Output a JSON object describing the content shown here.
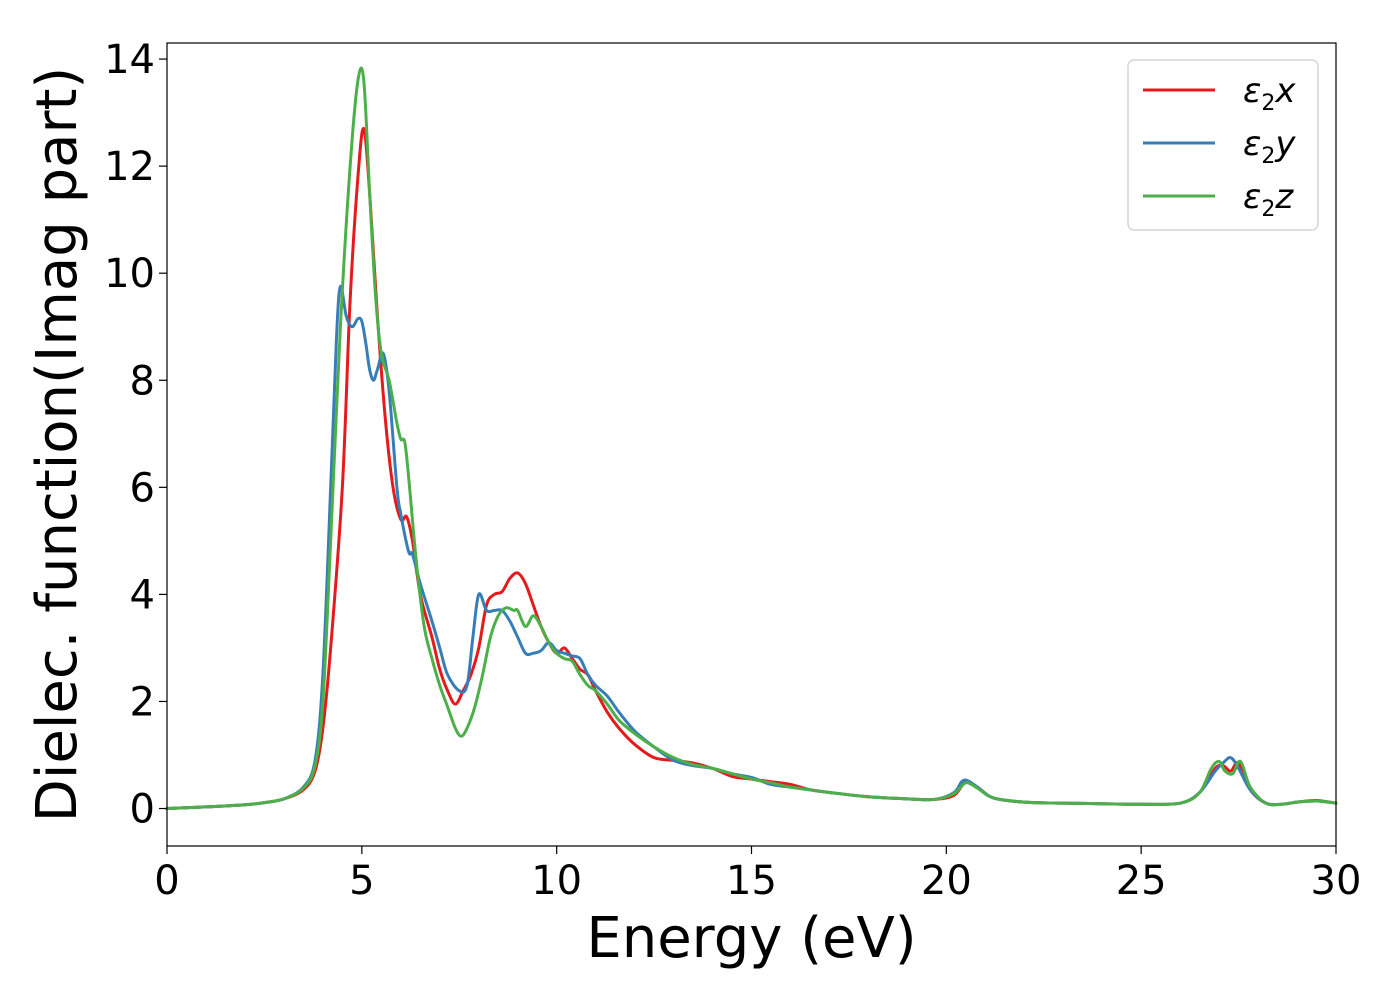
{
  "chart_data": {
    "type": "line",
    "xlabel": "Energy (eV)",
    "ylabel": "Dielec. function(Imag part)",
    "xlim": [
      0,
      30
    ],
    "ylim": [
      -0.7,
      14.3
    ],
    "xticks": [
      0,
      5,
      10,
      15,
      20,
      25,
      30
    ],
    "yticks": [
      0,
      2,
      4,
      6,
      8,
      10,
      12,
      14
    ],
    "grid": false,
    "legend_position": "top-right",
    "series": [
      {
        "name": "ε2x",
        "legend": {
          "base": "ε",
          "sub": "2",
          "suffix": "x"
        },
        "color": "#e41a1c",
        "x": [
          0,
          1,
          2,
          2.5,
          3,
          3.5,
          3.8,
          4.0,
          4.2,
          4.5,
          4.7,
          4.9,
          5.05,
          5.2,
          5.4,
          5.6,
          5.8,
          6.0,
          6.15,
          6.3,
          6.5,
          6.8,
          7.0,
          7.2,
          7.4,
          7.6,
          7.8,
          8.0,
          8.2,
          8.4,
          8.6,
          8.8,
          9.0,
          9.2,
          9.4,
          9.6,
          9.8,
          10.0,
          10.2,
          10.4,
          10.6,
          10.8,
          11.0,
          11.3,
          11.6,
          12.0,
          12.5,
          13.0,
          13.5,
          14.0,
          14.5,
          15.0,
          15.5,
          16.0,
          16.5,
          17.0,
          18.0,
          19.0,
          19.7,
          20.2,
          20.5,
          20.8,
          21.2,
          22.0,
          23.0,
          24.0,
          25.0,
          26.0,
          26.5,
          26.9,
          27.1,
          27.3,
          27.5,
          27.8,
          28.2,
          28.6,
          29.0,
          29.5,
          30.0
        ],
        "y": [
          0.0,
          0.03,
          0.07,
          0.11,
          0.18,
          0.35,
          0.7,
          1.5,
          3.0,
          6.0,
          9.5,
          11.8,
          12.7,
          11.5,
          9.2,
          7.3,
          6.0,
          5.4,
          5.45,
          5.0,
          4.0,
          3.2,
          2.6,
          2.2,
          1.95,
          2.2,
          2.5,
          3.0,
          3.8,
          4.0,
          4.05,
          4.3,
          4.4,
          4.2,
          3.8,
          3.4,
          3.1,
          2.9,
          3.0,
          2.8,
          2.6,
          2.5,
          2.2,
          1.8,
          1.5,
          1.2,
          0.95,
          0.9,
          0.85,
          0.75,
          0.6,
          0.55,
          0.5,
          0.45,
          0.35,
          0.3,
          0.22,
          0.18,
          0.17,
          0.25,
          0.5,
          0.4,
          0.2,
          0.12,
          0.1,
          0.09,
          0.08,
          0.1,
          0.3,
          0.75,
          0.8,
          0.7,
          0.85,
          0.35,
          0.1,
          0.08,
          0.12,
          0.15,
          0.1
        ]
      },
      {
        "name": "ε2y",
        "legend": {
          "base": "ε",
          "sub": "2",
          "suffix": "y"
        },
        "color": "#377eb8",
        "x": [
          0,
          1,
          2,
          2.5,
          3,
          3.5,
          3.8,
          4.0,
          4.2,
          4.35,
          4.45,
          4.6,
          4.75,
          4.9,
          5.0,
          5.1,
          5.2,
          5.3,
          5.4,
          5.55,
          5.7,
          5.9,
          6.0,
          6.2,
          6.3,
          6.5,
          6.8,
          7.0,
          7.2,
          7.5,
          7.7,
          7.85,
          8.0,
          8.2,
          8.4,
          8.6,
          8.8,
          9.0,
          9.2,
          9.4,
          9.6,
          9.8,
          10.0,
          10.2,
          10.4,
          10.6,
          10.8,
          11.0,
          11.3,
          11.6,
          12.0,
          12.5,
          13.0,
          13.5,
          14.0,
          14.5,
          15.0,
          15.5,
          16.0,
          16.5,
          17.0,
          18.0,
          19.0,
          19.7,
          20.2,
          20.45,
          20.8,
          21.2,
          22.0,
          23.0,
          24.0,
          25.0,
          26.0,
          26.5,
          26.9,
          27.1,
          27.3,
          27.5,
          27.8,
          28.2,
          28.6,
          29.0,
          29.5,
          30.0
        ],
        "y": [
          0.0,
          0.03,
          0.07,
          0.11,
          0.18,
          0.4,
          0.9,
          2.5,
          6.0,
          8.8,
          9.75,
          9.2,
          9.0,
          9.15,
          9.1,
          8.7,
          8.2,
          8.0,
          8.2,
          8.5,
          7.8,
          6.0,
          5.5,
          4.8,
          4.75,
          4.2,
          3.5,
          3.0,
          2.5,
          2.2,
          2.3,
          3.2,
          4.0,
          3.7,
          3.7,
          3.7,
          3.5,
          3.2,
          2.9,
          2.9,
          2.95,
          3.1,
          2.95,
          2.9,
          2.85,
          2.8,
          2.5,
          2.3,
          2.1,
          1.8,
          1.45,
          1.15,
          0.9,
          0.8,
          0.75,
          0.65,
          0.58,
          0.45,
          0.4,
          0.35,
          0.3,
          0.22,
          0.18,
          0.17,
          0.3,
          0.53,
          0.4,
          0.2,
          0.12,
          0.1,
          0.09,
          0.08,
          0.1,
          0.3,
          0.7,
          0.85,
          0.95,
          0.75,
          0.35,
          0.1,
          0.08,
          0.12,
          0.14,
          0.1
        ]
      },
      {
        "name": "ε2z",
        "legend": {
          "base": "ε",
          "sub": "2",
          "suffix": "z"
        },
        "color": "#4daf4a",
        "x": [
          0,
          1,
          2,
          2.5,
          3,
          3.5,
          3.8,
          4.0,
          4.2,
          4.45,
          4.7,
          4.9,
          5.05,
          5.2,
          5.35,
          5.5,
          5.7,
          5.9,
          6.0,
          6.1,
          6.2,
          6.4,
          6.6,
          6.8,
          7.0,
          7.2,
          7.4,
          7.55,
          7.7,
          7.9,
          8.1,
          8.3,
          8.5,
          8.7,
          8.9,
          9.0,
          9.2,
          9.4,
          9.6,
          9.8,
          10.0,
          10.2,
          10.4,
          10.6,
          10.8,
          11.0,
          11.3,
          11.6,
          12.0,
          12.5,
          13.0,
          13.5,
          14.0,
          14.5,
          15.0,
          15.5,
          16.0,
          16.5,
          17.0,
          18.0,
          19.0,
          19.7,
          20.2,
          20.5,
          20.8,
          21.2,
          22.0,
          23.0,
          24.0,
          25.0,
          26.0,
          26.5,
          26.8,
          27.0,
          27.15,
          27.35,
          27.55,
          27.8,
          28.2,
          28.6,
          29.0,
          29.5,
          30.0
        ],
        "y": [
          0.0,
          0.03,
          0.07,
          0.11,
          0.18,
          0.38,
          0.8,
          2.0,
          5.0,
          9.0,
          12.0,
          13.6,
          13.6,
          11.5,
          9.6,
          8.5,
          8.0,
          7.2,
          6.9,
          6.85,
          6.2,
          4.6,
          3.4,
          2.8,
          2.3,
          1.9,
          1.5,
          1.35,
          1.5,
          1.9,
          2.5,
          3.2,
          3.6,
          3.75,
          3.7,
          3.7,
          3.4,
          3.6,
          3.4,
          3.1,
          2.9,
          2.8,
          2.75,
          2.5,
          2.3,
          2.2,
          1.95,
          1.65,
          1.4,
          1.15,
          0.95,
          0.82,
          0.75,
          0.65,
          0.55,
          0.48,
          0.4,
          0.35,
          0.3,
          0.22,
          0.18,
          0.17,
          0.28,
          0.48,
          0.38,
          0.2,
          0.12,
          0.1,
          0.09,
          0.08,
          0.1,
          0.3,
          0.75,
          0.88,
          0.7,
          0.65,
          0.88,
          0.4,
          0.1,
          0.08,
          0.12,
          0.14,
          0.1
        ]
      }
    ]
  }
}
